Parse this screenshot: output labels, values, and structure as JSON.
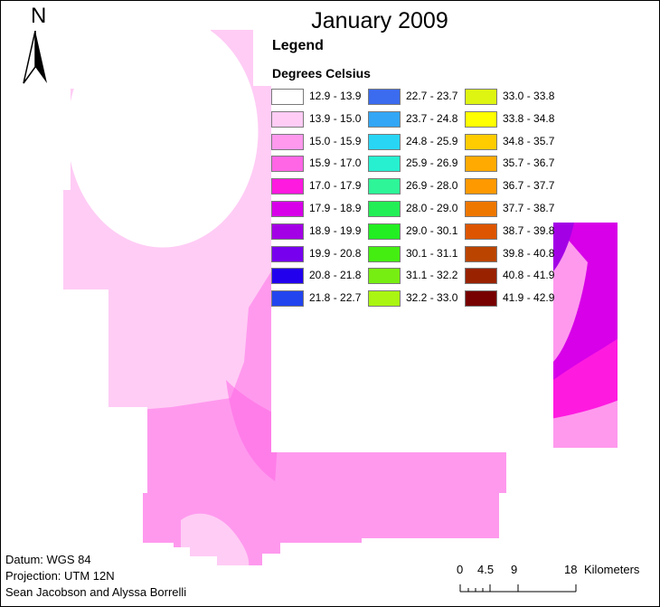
{
  "title": "January 2009",
  "north_arrow": {
    "letter": "N",
    "icon": "north-arrow-icon"
  },
  "legend": {
    "title": "Legend",
    "subtitle": "Degrees Celsius",
    "items": [
      {
        "label": "12.9 - 13.9",
        "color": "#ffffff"
      },
      {
        "label": "13.9 - 15.0",
        "color": "#ffccf5"
      },
      {
        "label": "15.0 - 15.9",
        "color": "#ff99ee"
      },
      {
        "label": "15.9 - 17.0",
        "color": "#ff66e6"
      },
      {
        "label": "17.0 - 17.9",
        "color": "#ff1ae0"
      },
      {
        "label": "17.9 - 18.9",
        "color": "#d700e8"
      },
      {
        "label": "18.9 - 19.9",
        "color": "#a300e6"
      },
      {
        "label": "19.9 - 20.8",
        "color": "#7700ee"
      },
      {
        "label": "20.8 - 21.8",
        "color": "#2200ee"
      },
      {
        "label": "21.8 - 22.7",
        "color": "#2244ee"
      },
      {
        "label": "22.7 - 23.7",
        "color": "#3b6bee"
      },
      {
        "label": "23.7 - 24.8",
        "color": "#33a6f5"
      },
      {
        "label": "24.8 - 25.9",
        "color": "#29d5f5"
      },
      {
        "label": "25.9 - 26.9",
        "color": "#26f0d0"
      },
      {
        "label": "26.9 - 28.0",
        "color": "#2ef598"
      },
      {
        "label": "28.0 - 29.0",
        "color": "#22ee55"
      },
      {
        "label": "29.0 - 30.1",
        "color": "#22ee22"
      },
      {
        "label": "30.1 - 31.1",
        "color": "#44ee11"
      },
      {
        "label": "31.1 - 32.2",
        "color": "#77ee11"
      },
      {
        "label": "32.2 - 33.0",
        "color": "#aaf511"
      },
      {
        "label": "33.0 - 33.8",
        "color": "#ddf511"
      },
      {
        "label": "33.8 - 34.8",
        "color": "#ffff00"
      },
      {
        "label": "34.8 - 35.7",
        "color": "#ffcc00"
      },
      {
        "label": "35.7 - 36.7",
        "color": "#ffaa00"
      },
      {
        "label": "36.7 - 37.7",
        "color": "#ff9900"
      },
      {
        "label": "37.7 - 38.7",
        "color": "#ee7700"
      },
      {
        "label": "38.7 - 39.8",
        "color": "#dd5500"
      },
      {
        "label": "39.8 - 40.8",
        "color": "#bb4400"
      },
      {
        "label": "40.8 - 41.9",
        "color": "#992200"
      },
      {
        "label": "41.9 - 42.9",
        "color": "#770000"
      }
    ]
  },
  "map_colors": {
    "light": "#ffccf5",
    "medium": "#ff99ee",
    "strong": "#ff66e6",
    "hot": "#ff1ae0",
    "violet": "#d700e8",
    "purple": "#a300e6"
  },
  "metadata": {
    "datum": "Datum: WGS 84",
    "projection": "Projection: UTM 12N",
    "authors": "Sean Jacobson and Alyssa Borrelli"
  },
  "scale_bar": {
    "ticks": [
      "0",
      "4.5",
      "9",
      "18"
    ],
    "unit": "Kilometers"
  }
}
